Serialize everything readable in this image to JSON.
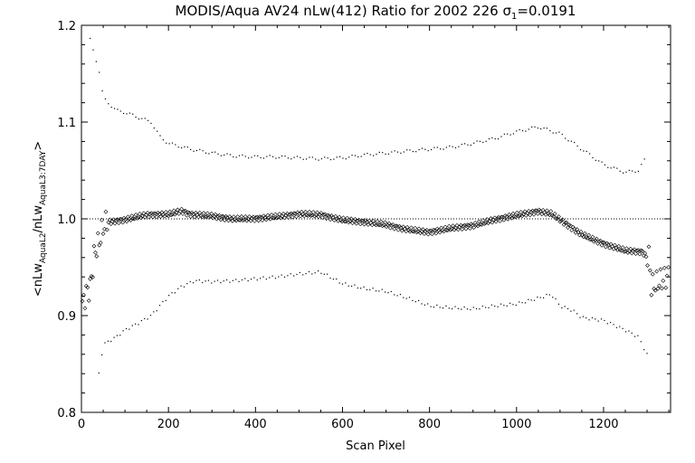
{
  "chart_data": {
    "type": "scatter",
    "title_main": "MODIS/Aqua AV24 nLw(412) Ratio for 2002 226 ",
    "title_sigma": "σ",
    "title_sigma_sub": "1",
    "title_value": "=0.0191",
    "xlabel": "Scan Pixel",
    "ylabel_parts": {
      "open": "<nLw",
      "sub1": "AquaL2",
      "mid": "/nLw",
      "sub2": "AquaL3:7DAY",
      "close": ">"
    },
    "xlim": [
      0,
      1354
    ],
    "ylim": [
      0.8,
      1.2
    ],
    "x_ticks": [
      0,
      200,
      400,
      600,
      800,
      1000,
      1200
    ],
    "x_tick_labels": [
      "0",
      "200",
      "400",
      "600",
      "800",
      "1000",
      "1200"
    ],
    "y_ticks": [
      0.8,
      0.9,
      1.0,
      1.1,
      1.2
    ],
    "y_tick_labels": [
      "0.8",
      "0.9",
      "1.0",
      "1.1",
      "1.2"
    ],
    "reference_line": 1.0,
    "mean_profile": [
      [
        0,
        0.91
      ],
      [
        10,
        0.925
      ],
      [
        20,
        0.93
      ],
      [
        30,
        0.965
      ],
      [
        40,
        0.975
      ],
      [
        50,
        0.99
      ],
      [
        60,
        0.996
      ],
      [
        100,
        0.998
      ],
      [
        150,
        1.003
      ],
      [
        200,
        1.004
      ],
      [
        230,
        1.008
      ],
      [
        250,
        1.005
      ],
      [
        300,
        1.004
      ],
      [
        350,
        1.001
      ],
      [
        400,
        1.001
      ],
      [
        450,
        1.002
      ],
      [
        500,
        1.004
      ],
      [
        550,
        1.003
      ],
      [
        600,
        0.998
      ],
      [
        650,
        0.997
      ],
      [
        700,
        0.995
      ],
      [
        750,
        0.99
      ],
      [
        800,
        0.987
      ],
      [
        850,
        0.99
      ],
      [
        900,
        0.992
      ],
      [
        950,
        0.998
      ],
      [
        1000,
        1.003
      ],
      [
        1050,
        1.008
      ],
      [
        1080,
        1.006
      ],
      [
        1100,
        1.0
      ],
      [
        1150,
        0.985
      ],
      [
        1200,
        0.975
      ],
      [
        1250,
        0.967
      ],
      [
        1290,
        0.965
      ],
      [
        1305,
        0.955
      ],
      [
        1310,
        0.925
      ],
      [
        1330,
        0.93
      ],
      [
        1350,
        0.935
      ]
    ],
    "upper_profile": [
      [
        20,
        1.185
      ],
      [
        30,
        1.17
      ],
      [
        40,
        1.155
      ],
      [
        50,
        1.125
      ],
      [
        80,
        1.112
      ],
      [
        100,
        1.11
      ],
      [
        130,
        1.105
      ],
      [
        160,
        1.1
      ],
      [
        180,
        1.085
      ],
      [
        200,
        1.078
      ],
      [
        250,
        1.072
      ],
      [
        300,
        1.068
      ],
      [
        350,
        1.065
      ],
      [
        400,
        1.064
      ],
      [
        450,
        1.064
      ],
      [
        500,
        1.063
      ],
      [
        550,
        1.062
      ],
      [
        600,
        1.063
      ],
      [
        650,
        1.066
      ],
      [
        700,
        1.068
      ],
      [
        750,
        1.07
      ],
      [
        800,
        1.072
      ],
      [
        850,
        1.074
      ],
      [
        900,
        1.078
      ],
      [
        950,
        1.083
      ],
      [
        1000,
        1.09
      ],
      [
        1050,
        1.095
      ],
      [
        1100,
        1.088
      ],
      [
        1150,
        1.072
      ],
      [
        1200,
        1.056
      ],
      [
        1250,
        1.048
      ],
      [
        1280,
        1.05
      ],
      [
        1300,
        1.065
      ]
    ],
    "lower_profile": [
      [
        40,
        0.84
      ],
      [
        50,
        0.87
      ],
      [
        80,
        0.878
      ],
      [
        100,
        0.885
      ],
      [
        130,
        0.892
      ],
      [
        160,
        0.9
      ],
      [
        180,
        0.91
      ],
      [
        200,
        0.92
      ],
      [
        230,
        0.93
      ],
      [
        260,
        0.936
      ],
      [
        300,
        0.935
      ],
      [
        350,
        0.936
      ],
      [
        400,
        0.938
      ],
      [
        450,
        0.94
      ],
      [
        500,
        0.943
      ],
      [
        550,
        0.945
      ],
      [
        600,
        0.933
      ],
      [
        650,
        0.928
      ],
      [
        700,
        0.925
      ],
      [
        750,
        0.918
      ],
      [
        800,
        0.91
      ],
      [
        850,
        0.908
      ],
      [
        900,
        0.907
      ],
      [
        950,
        0.91
      ],
      [
        1000,
        0.912
      ],
      [
        1050,
        0.918
      ],
      [
        1080,
        0.922
      ],
      [
        1100,
        0.91
      ],
      [
        1130,
        0.905
      ],
      [
        1150,
        0.898
      ],
      [
        1200,
        0.895
      ],
      [
        1250,
        0.885
      ],
      [
        1280,
        0.878
      ],
      [
        1300,
        0.86
      ]
    ]
  }
}
